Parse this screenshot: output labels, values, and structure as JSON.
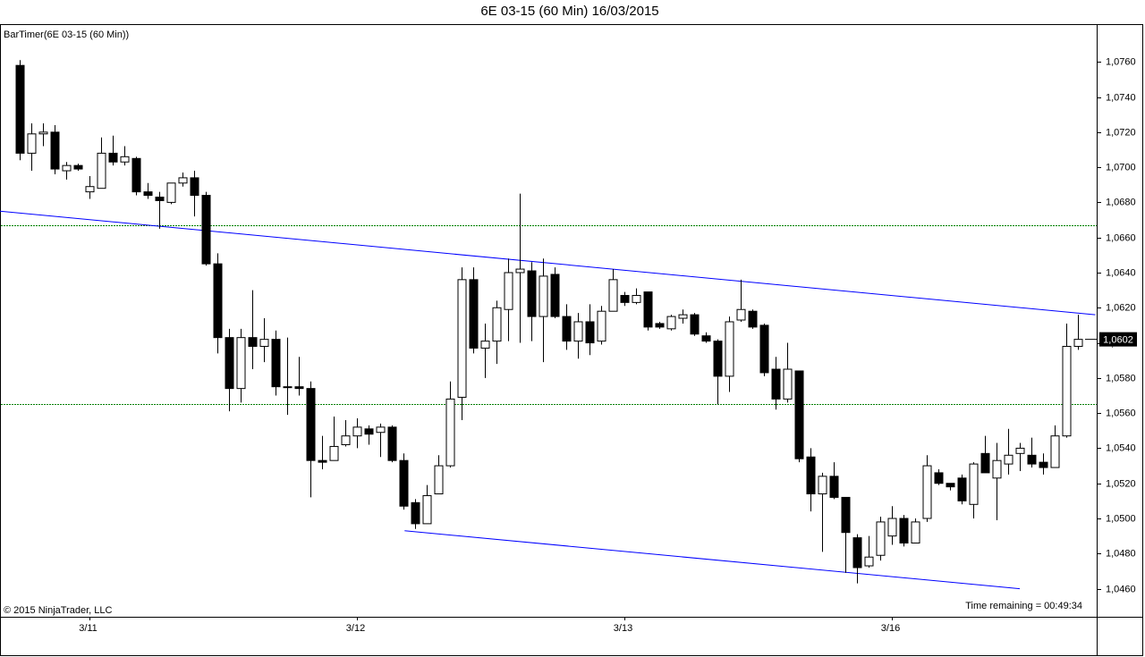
{
  "chart_data": {
    "type": "candlestick",
    "title": "6E 03-15 (60 Min)  16/03/2015",
    "indicator_label": "BarTimer(6E 03-15 (60 Min))",
    "copyright": "© 2015 NinjaTrader, LLC",
    "time_remaining": "Time remaining = 00:49:34",
    "categories": [
      null,
      null,
      null,
      null,
      null,
      null,
      "3/11",
      null,
      null,
      null,
      null,
      null,
      null,
      null,
      null,
      null,
      null,
      null,
      null,
      null,
      null,
      null,
      null,
      null,
      null,
      null,
      null,
      null,
      null,
      "3/12",
      null,
      null,
      null,
      null,
      null,
      null,
      null,
      null,
      null,
      null,
      null,
      null,
      null,
      null,
      null,
      null,
      null,
      null,
      null,
      null,
      null,
      null,
      "3/13",
      null,
      null,
      null,
      null,
      null,
      null,
      null,
      null,
      null,
      null,
      null,
      null,
      null,
      null,
      null,
      null,
      null,
      null,
      null,
      null,
      null,
      null,
      "3/16",
      null,
      null,
      null,
      null,
      null,
      null,
      null,
      null,
      null,
      null,
      null,
      null,
      null,
      null,
      null,
      null
    ],
    "open": [
      1.0758,
      1.0708,
      1.0719,
      1.072,
      1.0698,
      1.0701,
      1.0686,
      1.0688,
      1.0708,
      1.0703,
      1.0705,
      1.0686,
      1.0683,
      1.068,
      1.0691,
      1.0694,
      1.0684,
      1.0645,
      1.0603,
      1.0574,
      1.0603,
      1.0598,
      1.0602,
      1.0575,
      1.0575,
      1.0574,
      1.0533,
      1.0533,
      1.0542,
      1.0547,
      1.0551,
      1.0549,
      1.0552,
      1.0533,
      1.0509,
      1.0497,
      1.0514,
      1.053,
      1.0569,
      1.0636,
      1.0597,
      1.0601,
      1.0619,
      1.064,
      1.0641,
      1.0615,
      1.0639,
      1.0615,
      1.0601,
      1.0612,
      1.0601,
      1.0618,
      1.0627,
      1.0623,
      1.0629,
      1.0611,
      1.0608,
      1.0614,
      1.0616,
      1.0604,
      1.0601,
      1.0581,
      1.0613,
      1.0618,
      1.061,
      1.0585,
      1.0568,
      1.0584,
      1.0535,
      1.0514,
      1.0524,
      1.0512,
      1.0489,
      1.0473,
      1.0479,
      1.049,
      1.05,
      1.0486,
      1.05,
      1.0526,
      1.052,
      1.0523,
      1.0508,
      1.0537,
      1.0523,
      1.0531,
      1.0537,
      1.0536,
      1.0532,
      1.0529,
      1.0547,
      1.0598
    ],
    "high": [
      1.0761,
      1.0725,
      1.0725,
      1.0724,
      1.0703,
      1.0702,
      1.0695,
      1.0717,
      1.0718,
      1.0712,
      1.0706,
      1.0691,
      1.0686,
      1.0691,
      1.0697,
      1.0698,
      1.0686,
      1.0651,
      1.0608,
      1.0608,
      1.063,
      1.0614,
      1.0607,
      1.0603,
      1.0592,
      1.0578,
      1.0547,
      1.0558,
      1.0556,
      1.0557,
      1.0553,
      1.0554,
      1.0553,
      1.0537,
      1.0511,
      1.0519,
      1.0536,
      1.0578,
      1.0643,
      1.0643,
      1.0611,
      1.0624,
      1.0648,
      1.0685,
      1.0646,
      1.0648,
      1.0643,
      1.0622,
      1.0617,
      1.0622,
      1.0621,
      1.0642,
      1.0629,
      1.0631,
      1.0629,
      1.0612,
      1.0616,
      1.0619,
      1.0617,
      1.0606,
      1.0602,
      1.0615,
      1.0636,
      1.0619,
      1.0611,
      1.0592,
      1.06,
      1.0584,
      1.054,
      1.0526,
      1.0532,
      1.0512,
      1.0491,
      1.049,
      1.0501,
      1.0507,
      1.0502,
      1.05,
      1.0536,
      1.0528,
      1.052,
      1.0525,
      1.0532,
      1.0547,
      1.0543,
      1.0551,
      1.0543,
      1.0546,
      1.0537,
      1.0553,
      1.0611,
      1.0616
    ],
    "low": [
      1.0704,
      1.0698,
      1.0712,
      1.0696,
      1.0693,
      1.0698,
      1.0682,
      1.0688,
      1.0701,
      1.0701,
      1.0684,
      1.0682,
      1.0665,
      1.0679,
      1.0689,
      1.0672,
      1.0644,
      1.0594,
      1.0561,
      1.0566,
      1.0585,
      1.0589,
      1.057,
      1.0559,
      1.057,
      1.0512,
      1.0528,
      1.0533,
      1.0541,
      1.054,
      1.0542,
      1.0535,
      1.0532,
      1.0505,
      1.0494,
      1.0497,
      1.0514,
      1.0529,
      1.0556,
      1.0594,
      1.058,
      1.0588,
      1.0601,
      1.06,
      1.0601,
      1.0589,
      1.0614,
      1.0596,
      1.0591,
      1.0593,
      1.0599,
      1.0618,
      1.0621,
      1.0622,
      1.0607,
      1.0608,
      1.0607,
      1.0611,
      1.0604,
      1.06,
      1.0565,
      1.0572,
      1.0612,
      1.0608,
      1.0581,
      1.0562,
      1.0566,
      1.0532,
      1.0504,
      1.0481,
      1.0511,
      1.0469,
      1.0463,
      1.0472,
      1.0476,
      1.0485,
      1.0484,
      1.0486,
      1.0498,
      1.0519,
      1.0516,
      1.0508,
      1.05,
      1.0526,
      1.0499,
      1.0525,
      1.0527,
      1.0529,
      1.0525,
      1.0529,
      1.0546,
      1.0596
    ],
    "close": [
      1.0708,
      1.0719,
      1.072,
      1.0699,
      1.0701,
      1.0699,
      1.0689,
      1.0708,
      1.0703,
      1.0706,
      1.0686,
      1.0684,
      1.0681,
      1.0691,
      1.0694,
      1.0684,
      1.0645,
      1.0603,
      1.0574,
      1.0603,
      1.0598,
      1.0602,
      1.0575,
      1.0575,
      1.0574,
      1.0533,
      1.0532,
      1.0541,
      1.0547,
      1.0552,
      1.0548,
      1.0552,
      1.0533,
      1.0507,
      1.0497,
      1.0513,
      1.053,
      1.0568,
      1.0636,
      1.0597,
      1.0601,
      1.062,
      1.064,
      1.0642,
      1.0615,
      1.0638,
      1.0615,
      1.0601,
      1.0612,
      1.06,
      1.0618,
      1.0636,
      1.0623,
      1.0627,
      1.0609,
      1.0609,
      1.0615,
      1.0616,
      1.0605,
      1.0601,
      1.0581,
      1.0612,
      1.0619,
      1.0609,
      1.0583,
      1.0568,
      1.0585,
      1.0534,
      1.0514,
      1.0524,
      1.0512,
      1.0492,
      1.0472,
      1.0478,
      1.0498,
      1.05,
      1.0486,
      1.0498,
      1.053,
      1.052,
      1.0518,
      1.051,
      1.0531,
      1.0526,
      1.0533,
      1.0536,
      1.054,
      1.0531,
      1.0529,
      1.0547,
      1.0598,
      1.0602
    ],
    "up_color": "#ffffff",
    "down_color": "#000000",
    "wick_color": "#000000",
    "ylim": [
      1.0444,
      1.0781
    ],
    "yticks": [
      {
        "value": 1.046,
        "label": "1,0460"
      },
      {
        "value": 1.048,
        "label": "1,0480"
      },
      {
        "value": 1.05,
        "label": "1,0500"
      },
      {
        "value": 1.052,
        "label": "1,0520"
      },
      {
        "value": 1.054,
        "label": "1,0540"
      },
      {
        "value": 1.056,
        "label": "1,0560"
      },
      {
        "value": 1.058,
        "label": "1,0580"
      },
      {
        "value": 1.06,
        "label": "1,0600"
      },
      {
        "value": 1.062,
        "label": "1,0620"
      },
      {
        "value": 1.064,
        "label": "1,0640"
      },
      {
        "value": 1.066,
        "label": "1,0660"
      },
      {
        "value": 1.068,
        "label": "1,0680"
      },
      {
        "value": 1.07,
        "label": "1,0700"
      },
      {
        "value": 1.072,
        "label": "1,0720"
      },
      {
        "value": 1.074,
        "label": "1,0740"
      },
      {
        "value": 1.076,
        "label": "1,0760"
      }
    ],
    "last_price": {
      "value": 1.0602,
      "label": "1,0602"
    },
    "horizontal_lines": {
      "color": "#008000",
      "values": [
        1.0667,
        1.0565
      ]
    },
    "trend_lines": {
      "color": "#0000ff",
      "lines": [
        {
          "x": [
            -1.7,
            92.5
          ],
          "y": [
            1.0675,
            1.0616
          ]
        },
        {
          "x": [
            33.1,
            86.0
          ],
          "y": [
            1.0493,
            1.046
          ]
        }
      ]
    }
  }
}
